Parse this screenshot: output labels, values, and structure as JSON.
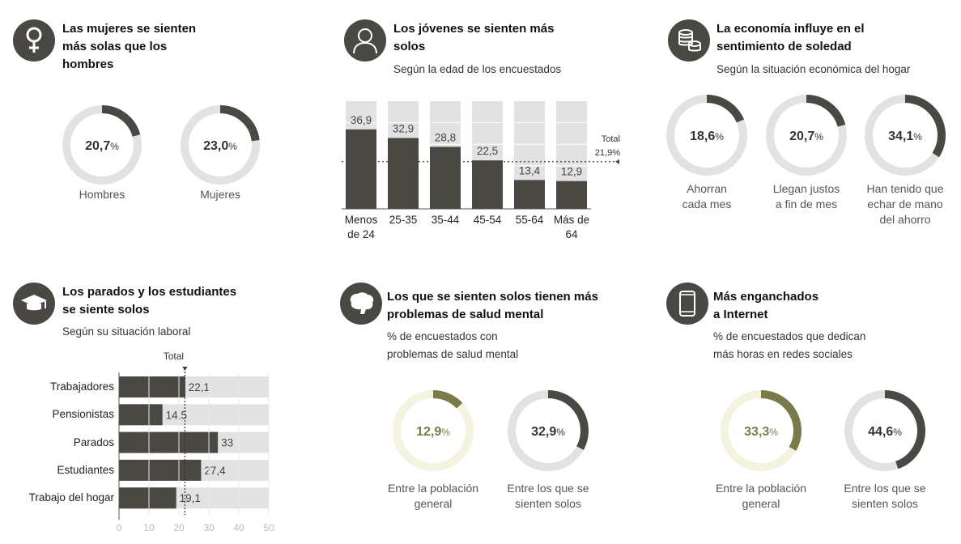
{
  "colors": {
    "dark": "#4a4843",
    "track": "#e2e2e2",
    "olive": "#7b7a4b",
    "olive_track": "#f3f3e0"
  },
  "panels": {
    "gender": {
      "icon": "female-icon",
      "title": [
        "Las mujeres se sienten",
        "más solas que los",
        "hombres"
      ]
    },
    "age": {
      "icon": "person-icon",
      "title": [
        "Los jóvenes se sienten más",
        "solos"
      ],
      "subtitle": "Según la edad de los encuestados"
    },
    "economy": {
      "icon": "coins-icon",
      "title": [
        "La economía influye en el",
        "sentimiento de soledad"
      ],
      "subtitle": "Según la situación económica del hogar"
    },
    "work": {
      "icon": "graduation-cap-icon",
      "title": [
        "Los parados y los estudiantes",
        "se siente solos"
      ],
      "subtitle": "Según su situación laboral"
    },
    "mental": {
      "icon": "brain-icon",
      "title": [
        "Los que se sienten solos tienen más",
        "problemas de salud mental"
      ],
      "subtitle": [
        "% de encuestados con",
        "problemas de salud mental"
      ]
    },
    "internet": {
      "icon": "smartphone-icon",
      "title": [
        "Más enganchados",
        "a Internet"
      ],
      "subtitle": [
        "% de encuestados que dedican",
        "más horas en redes sociales"
      ]
    }
  },
  "chart_data": [
    {
      "type": "pie",
      "subtype": "donut",
      "panel": "gender",
      "values": [
        20.7,
        23.0
      ],
      "value_labels": [
        "20,7",
        "23,0"
      ],
      "unit": "%",
      "categories": [
        [
          "Hombres"
        ],
        [
          "Mujeres"
        ]
      ]
    },
    {
      "type": "bar",
      "panel": "age",
      "categories": [
        [
          "Menos",
          "de 24"
        ],
        [
          "25-35"
        ],
        [
          "35-44"
        ],
        [
          "45-54"
        ],
        [
          "55-64"
        ],
        [
          "Más de",
          "64"
        ]
      ],
      "values": [
        36.9,
        32.9,
        28.8,
        22.5,
        13.4,
        12.9
      ],
      "value_labels": [
        "36,9",
        "32,9",
        "28,8",
        "22,5",
        "13,4",
        "12,9"
      ],
      "ylim": [
        0,
        50
      ],
      "grid": true,
      "reference": {
        "label": "Total",
        "value": 21.9,
        "value_label": "21,9%"
      }
    },
    {
      "type": "pie",
      "subtype": "donut",
      "panel": "economy",
      "values": [
        18.6,
        20.7,
        34.1
      ],
      "value_labels": [
        "18,6",
        "20,7",
        "34,1"
      ],
      "unit": "%",
      "categories": [
        [
          "Ahorran",
          "cada mes"
        ],
        [
          "Llegan justos",
          "a fin de mes"
        ],
        [
          "Han tenido que",
          "echar de mano",
          "del ahorro"
        ]
      ]
    },
    {
      "type": "bar",
      "orientation": "horizontal",
      "panel": "work",
      "categories": [
        "Trabajadores",
        "Pensionistas",
        "Parados",
        "Estudiantes",
        "Trabajo del hogar"
      ],
      "values": [
        22.1,
        14.5,
        33,
        27.4,
        19.1
      ],
      "value_labels": [
        "22,1",
        "14,5",
        "33",
        "27,4",
        "19,1"
      ],
      "xlim": [
        0,
        50
      ],
      "xticks": [
        "0",
        "10",
        "20",
        "30",
        "40",
        "50"
      ],
      "reference": {
        "label": "Total",
        "value": 22
      }
    },
    {
      "type": "pie",
      "subtype": "donut",
      "panel": "mental",
      "values": [
        12.9,
        32.9
      ],
      "value_labels": [
        "12,9",
        "32,9"
      ],
      "unit": "%",
      "categories": [
        [
          "Entre la población",
          "general"
        ],
        [
          "Entre los que se",
          "sienten solos"
        ]
      ],
      "styles": [
        "olive",
        "dark"
      ]
    },
    {
      "type": "pie",
      "subtype": "donut",
      "panel": "internet",
      "values": [
        33.3,
        44.6
      ],
      "value_labels": [
        "33,3",
        "44,6"
      ],
      "unit": "%",
      "categories": [
        [
          "Entre la población",
          "general"
        ],
        [
          "Entre los que se",
          "sienten solos"
        ]
      ],
      "styles": [
        "olive",
        "dark"
      ]
    }
  ]
}
